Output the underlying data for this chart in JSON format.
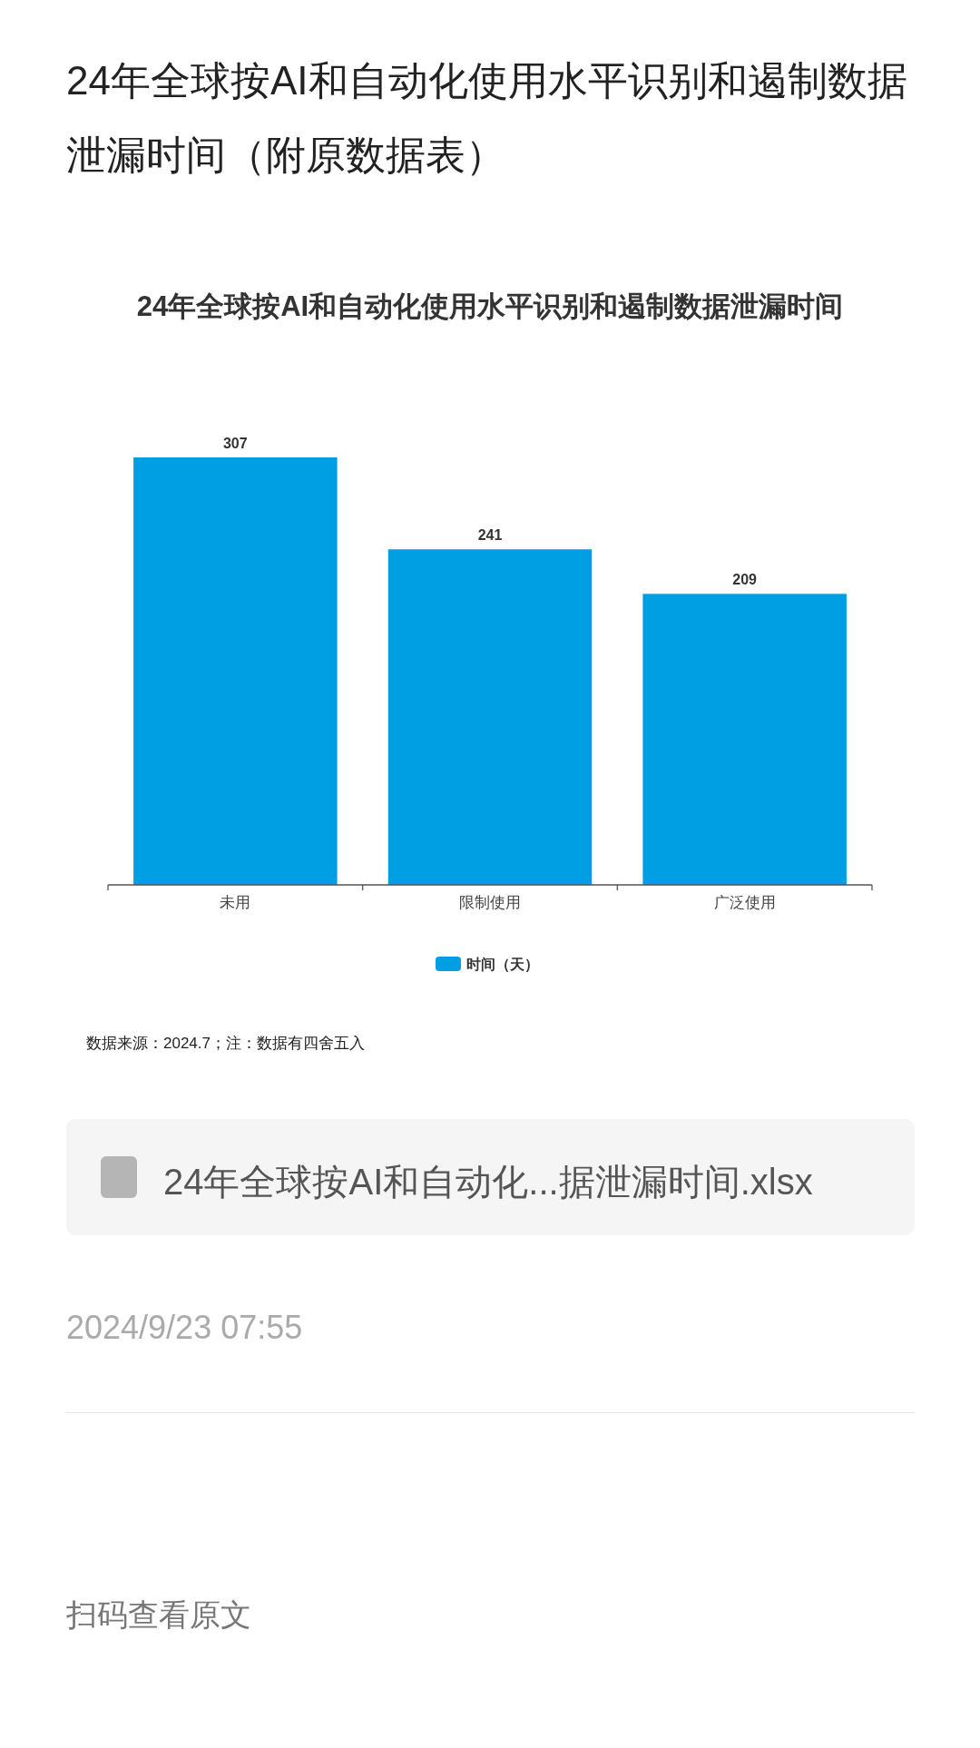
{
  "chart_data": {
    "type": "bar",
    "title": "24年全球按AI和自动化使用水平识别和遏制数据泄漏时间（附原数据表）",
    "subtitle": "24年全球按AI和自动化使用水平识别和遏制数据泄漏时间",
    "categories": [
      "未用",
      "限制使用",
      "广泛使用"
    ],
    "series": [
      {
        "name": "时间（天）",
        "color": "#009fe3",
        "values": [
          307,
          241,
          209
        ]
      }
    ],
    "data_labels": true,
    "legend": "bottom",
    "annotations": [
      "数据来源：2024.7；注：数据有四舍五入",
      "24年全球按AI和自动化...据泄漏时间.xlsx",
      "2024/9/23 07:55",
      "扫码查看原文"
    ]
  }
}
